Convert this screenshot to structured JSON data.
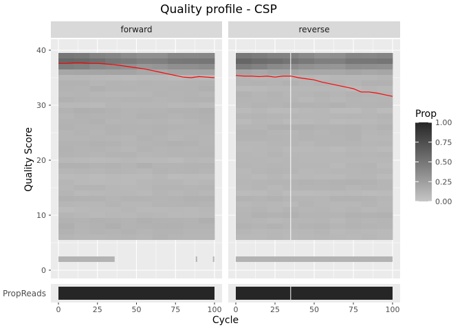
{
  "chart_data": {
    "type": "heatmap",
    "title": "Quality profile - CSP",
    "xlabel": "Cycle",
    "ylabel": "Quality Score",
    "xlim": [
      0,
      100
    ],
    "ylim": [
      0,
      40
    ],
    "x_ticks": [
      "0",
      "25",
      "50",
      "75",
      "100"
    ],
    "y_ticks": [
      "0",
      "10",
      "20",
      "30",
      "40"
    ],
    "bottom_row_label": "PropReads",
    "panels": [
      {
        "name": "forward",
        "mean_quality": {
          "x": [
            0,
            5,
            10,
            15,
            20,
            25,
            30,
            35,
            40,
            45,
            50,
            55,
            60,
            65,
            70,
            75,
            80,
            85,
            90,
            95,
            100
          ],
          "y": [
            37.6,
            37.6,
            37.7,
            37.7,
            37.6,
            37.6,
            37.5,
            37.4,
            37.2,
            37.0,
            36.8,
            36.6,
            36.3,
            36.0,
            35.7,
            35.4,
            35.1,
            35.0,
            35.2,
            35.1,
            35.0
          ]
        }
      },
      {
        "name": "reverse",
        "mean_quality": {
          "x": [
            0,
            5,
            10,
            15,
            20,
            25,
            30,
            35,
            40,
            45,
            50,
            55,
            60,
            65,
            70,
            75,
            80,
            85,
            90,
            95,
            100
          ],
          "y": [
            35.4,
            35.3,
            35.3,
            35.2,
            35.3,
            35.1,
            35.3,
            35.3,
            35.0,
            34.8,
            34.6,
            34.2,
            33.9,
            33.6,
            33.3,
            33.0,
            32.4,
            32.4,
            32.2,
            31.9,
            31.6
          ]
        }
      }
    ],
    "legend": {
      "title": "Prop",
      "placement": "right",
      "ticks": [
        "1.00",
        "0.75",
        "0.50",
        "0.25",
        "0.00"
      ]
    },
    "colors": {
      "mean_line": "#ff0000",
      "gradient_low": "#c6c6c6",
      "gradient_high": "#262626",
      "panel_bg": "#ebebeb",
      "strip_bg": "#d9d9d9"
    }
  }
}
